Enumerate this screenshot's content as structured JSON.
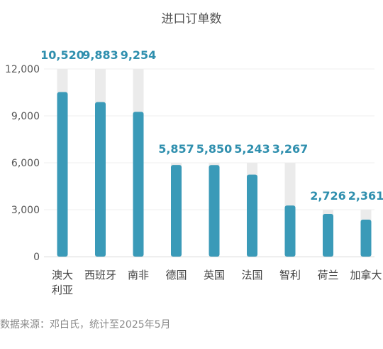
{
  "chart_data": {
    "type": "bar",
    "title": "进口订单数",
    "categories": [
      "澳大利亚",
      "西班牙",
      "南非",
      "德国",
      "英国",
      "法国",
      "智利",
      "荷兰",
      "加拿大"
    ],
    "category_lines": [
      [
        "澳大",
        "利亚"
      ],
      [
        "西班牙"
      ],
      [
        "南非"
      ],
      [
        "德国"
      ],
      [
        "英国"
      ],
      [
        "法国"
      ],
      [
        "智利"
      ],
      [
        "荷兰"
      ],
      [
        "加拿大"
      ]
    ],
    "values": [
      10520,
      9883,
      9254,
      5857,
      5850,
      5243,
      3267,
      2726,
      2361
    ],
    "data_labels": [
      "10,520",
      "9,883",
      "9,254",
      "5,857",
      "5,850",
      "5,243",
      "3,267",
      "2,726",
      "2,361"
    ],
    "background_values": [
      12000,
      12000,
      12000,
      6000,
      6000,
      6000,
      6000,
      3000,
      3000
    ],
    "yticks": [
      0,
      3000,
      6000,
      9000,
      12000
    ],
    "ytick_labels": [
      "0",
      "3,000",
      "6,000",
      "9,000",
      "12,000"
    ],
    "ylim": [
      0,
      12000
    ],
    "xlabel": "",
    "ylabel": "",
    "grid": true,
    "colors": {
      "bar": "#3a9ab8",
      "background_bar": "#ebebeb",
      "label": "#2f8fae"
    }
  },
  "source_note": "数据来源：邓白氏，统计至2025年5月"
}
